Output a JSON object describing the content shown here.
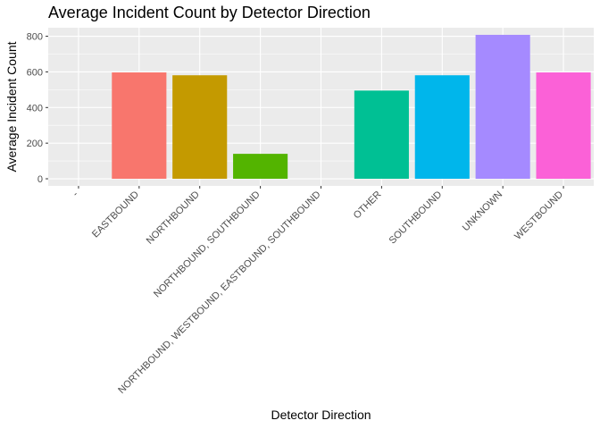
{
  "chart_data": {
    "type": "bar",
    "title": "Average Incident Count by Detector Direction",
    "xlabel": "Detector Direction",
    "ylabel": "Average Incident Count",
    "categories": [
      "-",
      "EASTBOUND",
      "NORTHBOUND",
      "NORTHBOUND, SOUTHBOUND",
      "NORTHBOUND, WESTBOUND, EASTBOUND, SOUTHBOUND",
      "OTHER",
      "SOUTHBOUND",
      "UNKNOWN",
      "WESTBOUND"
    ],
    "values": [
      0,
      597,
      581,
      140,
      0,
      495,
      581,
      808,
      597
    ],
    "colors": [
      "#F8766D",
      "#F8766D",
      "#C49A00",
      "#53B400",
      "#00C094",
      "#00C094",
      "#00B6EB",
      "#A58AFF",
      "#FB61D7"
    ],
    "ylim": [
      -40,
      848
    ],
    "yticks": [
      0,
      200,
      400,
      600,
      800
    ],
    "grid": true,
    "legend": "none",
    "panel_background": "#EBEBEB"
  }
}
